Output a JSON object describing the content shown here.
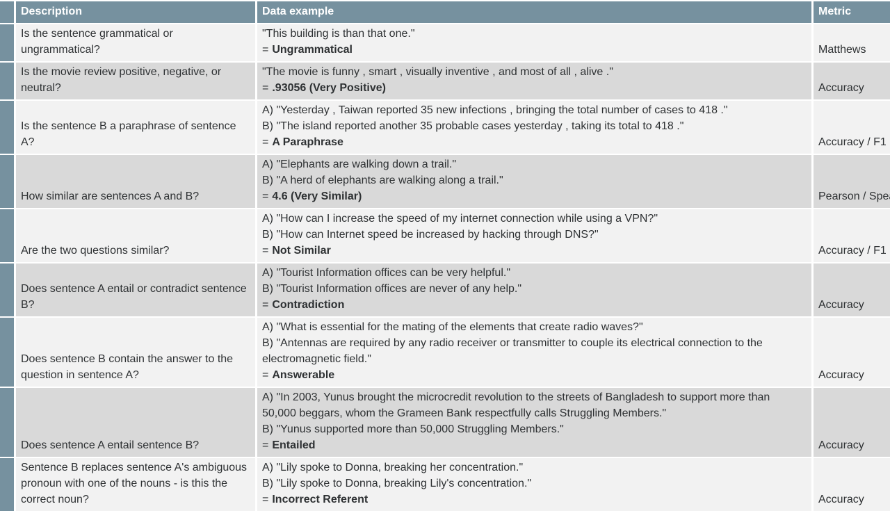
{
  "table": {
    "colors": {
      "header_bg": "#76919f",
      "name_column_bg": "#76919f",
      "row_light_bg": "#f2f2f2",
      "row_dark_bg": "#d9d9d9",
      "header_text": "#ffffff",
      "body_text": "#2e3133"
    },
    "eq": "=",
    "headers": {
      "name": "",
      "description": "Description",
      "data_example": "Data example",
      "metric": "Metric"
    },
    "rows": [
      {
        "description": "Is the sentence grammatical or ungrammatical?",
        "example_lines": [
          "\"This building is than that one.\""
        ],
        "answer": "Ungrammatical",
        "metric": "Matthews"
      },
      {
        "description": "Is the movie review positive, negative, or neutral?",
        "example_lines": [
          "\"The movie is funny , smart , visually inventive , and most of all , alive .\""
        ],
        "answer": ".93056 (Very Positive)",
        "metric": "Accuracy"
      },
      {
        "description": "Is the sentence B a paraphrase of sentence A?",
        "example_lines": [
          "A) \"Yesterday , Taiwan reported 35 new infections , bringing the total number of cases to 418 .\"",
          "B) \"The island reported another 35 probable cases yesterday , taking its total to 418 .\""
        ],
        "answer": "A Paraphrase",
        "metric": "Accuracy / F1"
      },
      {
        "description": "How similar are sentences A and B?",
        "example_lines": [
          "A) \"Elephants are walking down a trail.\"",
          "B) \"A herd of elephants are walking along a trail.\""
        ],
        "answer": "4.6 (Very Similar)",
        "metric": "Pearson / Spearman"
      },
      {
        "description": "Are the two questions similar?",
        "example_lines": [
          "A) \"How can I increase the speed of my internet connection while using a VPN?\"",
          "B) \"How can Internet speed be increased by hacking through DNS?\""
        ],
        "answer": "Not Similar",
        "metric": "Accuracy / F1"
      },
      {
        "description": "Does sentence A entail or contradict sentence B?",
        "example_lines": [
          "A) \"Tourist Information offices can be very helpful.\"",
          "B) \"Tourist Information offices are never of any help.\""
        ],
        "answer": "Contradiction",
        "metric": "Accuracy"
      },
      {
        "description": "Does sentence B contain the answer to the question in sentence A?",
        "example_lines": [
          "A) \"What is essential for the mating of the elements that create radio waves?\"",
          "B) \"Antennas are required by any radio receiver or transmitter to couple its electrical connection to the electromagnetic field.\""
        ],
        "answer": "Answerable",
        "metric": "Accuracy"
      },
      {
        "description": "Does sentence A entail sentence B?",
        "example_lines": [
          "A) \"In 2003, Yunus brought the microcredit revolution to the streets of Bangladesh to support more than 50,000 beggars, whom the Grameen Bank respectfully calls Struggling Members.\"",
          "B) \"Yunus supported more than 50,000 Struggling Members.\""
        ],
        "answer": "Entailed",
        "metric": "Accuracy"
      },
      {
        "description": "Sentence B replaces sentence A's ambiguous pronoun with one of the nouns - is this the correct noun?",
        "example_lines": [
          "A) \"Lily spoke to Donna, breaking her concentration.\"",
          "B) \"Lily spoke to Donna, breaking Lily's concentration.\""
        ],
        "answer": "Incorrect Referent",
        "metric": "Accuracy"
      }
    ]
  }
}
